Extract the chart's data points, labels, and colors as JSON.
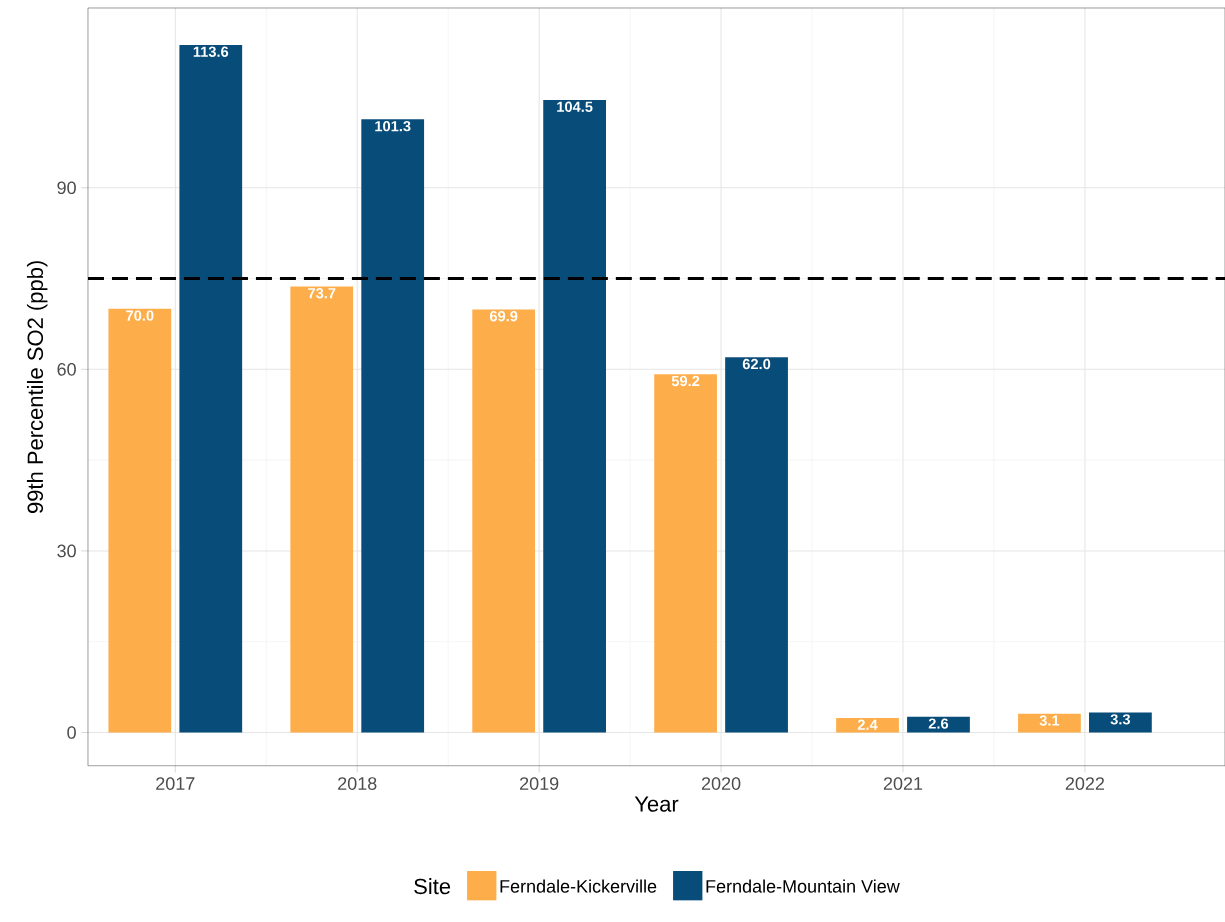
{
  "chart_data": {
    "type": "bar",
    "xlabel": "Year",
    "ylabel": "99th Percentile SO2 (ppb)",
    "legend_title": "Site",
    "categories": [
      "2017",
      "2018",
      "2019",
      "2020",
      "2021",
      "2022"
    ],
    "series": [
      {
        "name": "Ferndale-Kickerville",
        "color": "#fdae4b",
        "values": [
          70.0,
          73.7,
          69.9,
          59.2,
          2.4,
          3.1
        ],
        "value_labels": [
          "70.0",
          "73.7",
          "69.9",
          "59.2",
          "2.4",
          "3.1"
        ]
      },
      {
        "name": "Ferndale-Mountain View",
        "color": "#084c7a",
        "values": [
          113.6,
          101.3,
          104.5,
          62.0,
          2.6,
          3.3
        ],
        "value_labels": [
          "113.6",
          "101.3",
          "104.5",
          "62.0",
          "2.6",
          "3.3"
        ]
      }
    ],
    "ylim": [
      -5.5,
      119.7
    ],
    "yticks": [
      0,
      30,
      60,
      90
    ],
    "ref_lines": [
      {
        "axis": "y",
        "value": 75,
        "color": "#000000",
        "line_style": "dashed"
      }
    ],
    "grid": true,
    "legend": "bottom"
  }
}
